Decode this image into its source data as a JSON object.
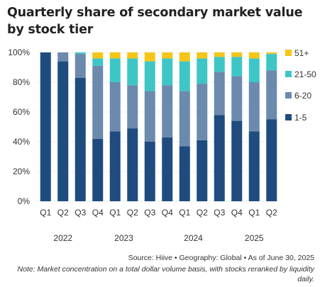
{
  "chart_data": {
    "type": "bar",
    "stacked": true,
    "title": "Quarterly share of secondary market value by stock tier",
    "categories": [
      "Q1",
      "Q2",
      "Q3",
      "Q4",
      "Q1",
      "Q2",
      "Q3",
      "Q4",
      "Q1",
      "Q2",
      "Q3",
      "Q4",
      "Q1",
      "Q2"
    ],
    "years": [
      {
        "label": "2022",
        "from": 0,
        "to": 2
      },
      {
        "label": "2023",
        "from": 3,
        "to": 6
      },
      {
        "label": "2024",
        "from": 7,
        "to": 10
      },
      {
        "label": "2025",
        "from": 11,
        "to": 13
      }
    ],
    "series": [
      {
        "name": "1-5",
        "color": "#1e4c7f",
        "values": [
          100,
          94,
          83,
          42,
          47,
          49,
          40,
          43,
          37,
          41,
          58,
          54,
          47,
          55
        ]
      },
      {
        "name": "6-20",
        "color": "#6b8aad",
        "values": [
          0,
          6,
          16,
          49,
          33,
          29,
          34,
          35,
          37,
          38,
          29,
          30,
          33,
          33
        ]
      },
      {
        "name": "21-50",
        "color": "#3ec6c6",
        "values": [
          0,
          0,
          1,
          5,
          16,
          18,
          20,
          18,
          20,
          17,
          10,
          13,
          16,
          11
        ]
      },
      {
        "name": "51+",
        "color": "#f5c518",
        "values": [
          0,
          0,
          0,
          4,
          4,
          4,
          6,
          4,
          6,
          4,
          3,
          3,
          4,
          1
        ]
      }
    ],
    "legend_order": [
      "51+",
      "21-50",
      "6-20",
      "1-5"
    ],
    "ylim": [
      0,
      100
    ],
    "yticks": [
      "0%",
      "20%",
      "40%",
      "60%",
      "80%",
      "100%"
    ],
    "legend_position": "right"
  },
  "footer": {
    "source": "Source: Hiive  •  Geography: Global  •  As of June 30, 2025",
    "note": "Note: Market concentration on a total dollar volume basis, with stocks reranked by liquidity daily."
  }
}
